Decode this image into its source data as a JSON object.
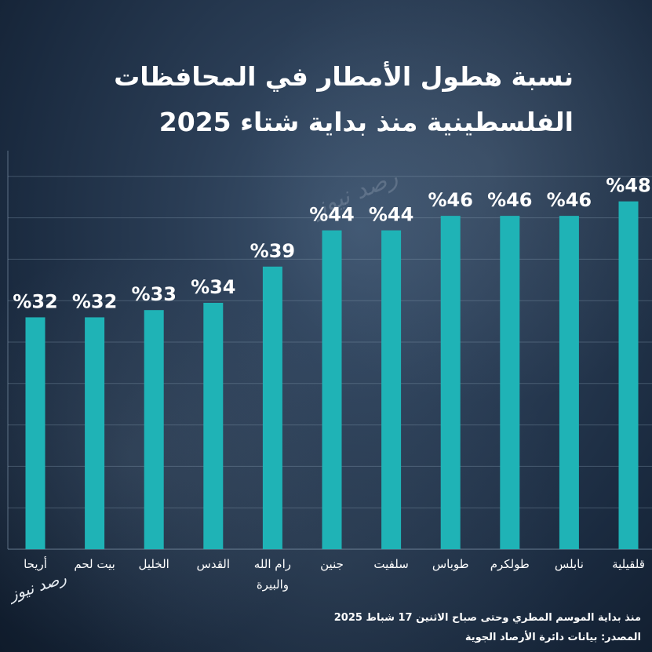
{
  "title_line1": "نسبة هطول الأمطار في المحافظات",
  "title_line2": "الفلسطينية منذ بداية شتاء 2025",
  "watermark": "رصد نيوز",
  "logo_text": "رصد نيوز",
  "note": "منذ بداية الموسم المطري وحتى صباح الاثنين 17 شباط 2025",
  "source": "المصدر: بيانات دائرة الأرصاد الجوية",
  "colors": {
    "bar": "#1fb3b6",
    "grid": "#8aa0b5",
    "text": "#ffffff"
  },
  "chart_data": {
    "type": "bar",
    "title": "نسبة هطول الأمطار في المحافظات الفلسطينية منذ بداية شتاء 2025",
    "xlabel": "",
    "ylabel": "",
    "ylim": [
      0,
      55
    ],
    "grid": true,
    "categories": [
      "أريحا",
      "بيت لحم",
      "الخليل",
      "القدس",
      "رام الله والبيرة",
      "جنين",
      "سلفيت",
      "طوباس",
      "طولكرم",
      "نابلس",
      "قلقيلية"
    ],
    "category_lines": [
      [
        "أريحا"
      ],
      [
        "بيت لحم"
      ],
      [
        "الخليل"
      ],
      [
        "القدس"
      ],
      [
        "رام الله",
        "والبيرة"
      ],
      [
        "جنين"
      ],
      [
        "سلفيت"
      ],
      [
        "طوباس"
      ],
      [
        "طولكرم"
      ],
      [
        "نابلس"
      ],
      [
        "قلقيلية"
      ]
    ],
    "values": [
      32,
      32,
      33,
      34,
      39,
      44,
      44,
      46,
      46,
      46,
      48
    ],
    "data_labels": [
      "%32",
      "%32",
      "%33",
      "%34",
      "%39",
      "%44",
      "%44",
      "%46",
      "%46",
      "%46",
      "%48"
    ]
  }
}
